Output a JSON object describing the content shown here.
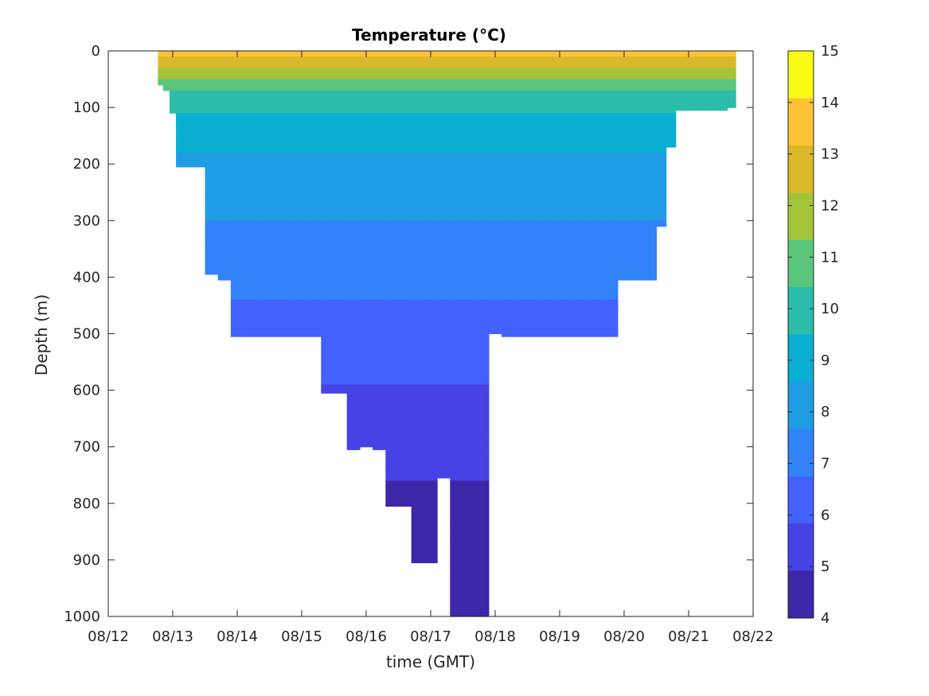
{
  "chart_data": {
    "type": "heatmap",
    "title": "Temperature (°C)",
    "xlabel": "time (GMT)",
    "ylabel": "Depth (m)",
    "x_tick_labels": [
      "08/12",
      "08/13",
      "08/14",
      "08/15",
      "08/16",
      "08/17",
      "08/18",
      "08/19",
      "08/20",
      "08/21",
      "08/22"
    ],
    "y_ticks": [
      0,
      100,
      200,
      300,
      400,
      500,
      600,
      700,
      800,
      900,
      1000
    ],
    "xlim": [
      "08/12",
      "08/22"
    ],
    "ylim": [
      0,
      1000
    ],
    "y_reversed": true,
    "colorbar": {
      "ticks": [
        4,
        5,
        6,
        7,
        8,
        9,
        10,
        11,
        12,
        13,
        14,
        15
      ],
      "range": [
        4,
        15
      ],
      "colormap": "parula"
    },
    "grid": false,
    "profiles": {
      "date_days": [
        12.8,
        12.9,
        13.0,
        13.1,
        13.2,
        13.4,
        13.6,
        13.8,
        14.0,
        14.2,
        14.5,
        14.8,
        15.0,
        15.2,
        15.4,
        15.6,
        15.8,
        16.0,
        16.2,
        16.4,
        16.6,
        16.8,
        17.0,
        17.2,
        17.4,
        17.6,
        17.8,
        18.0,
        18.2,
        18.5,
        18.8,
        19.0,
        19.3,
        19.6,
        19.8,
        20.0,
        20.2,
        20.4,
        20.6,
        20.7,
        20.9,
        21.2,
        21.5,
        21.7
      ],
      "max_depth_m": [
        60,
        70,
        110,
        205,
        205,
        205,
        395,
        405,
        505,
        505,
        505,
        505,
        505,
        505,
        605,
        605,
        705,
        700,
        705,
        805,
        805,
        905,
        905,
        755,
        1000,
        1000,
        1000,
        500,
        505,
        505,
        505,
        505,
        505,
        505,
        505,
        405,
        405,
        405,
        310,
        170,
        105,
        105,
        105,
        100
      ]
    },
    "temperature_profile": {
      "depth_m": [
        0,
        25,
        50,
        75,
        100,
        150,
        200,
        300,
        400,
        500,
        600,
        700,
        800,
        900,
        1000
      ],
      "temp_c": [
        13.5,
        12.5,
        11.2,
        10.2,
        9.6,
        9.0,
        8.4,
        7.7,
        7.0,
        6.3,
        5.8,
        5.2,
        4.7,
        4.4,
        4.2
      ]
    },
    "colormap_hex": [
      "#3e26a8",
      "#4742e6",
      "#4361fe",
      "#3183f7",
      "#1f9ce3",
      "#0aafd1",
      "#2bbdaa",
      "#5ac67c",
      "#a3c439",
      "#dbb82a",
      "#fdc337",
      "#f9fb15"
    ]
  }
}
